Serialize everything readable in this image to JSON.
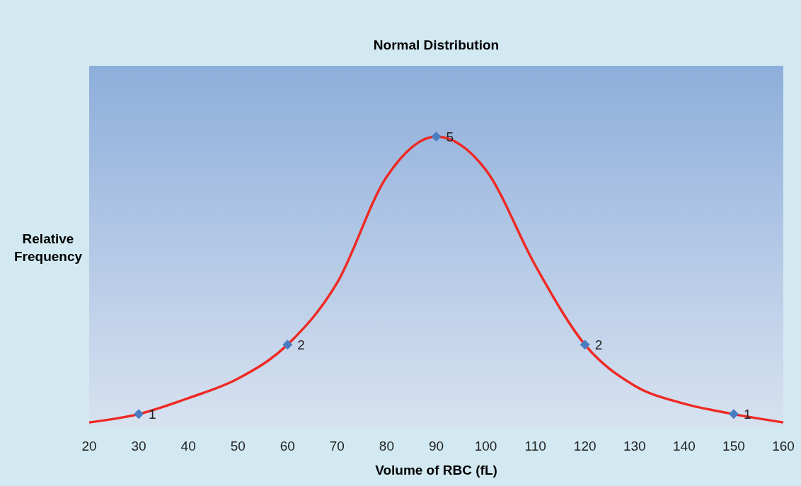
{
  "chart_data": {
    "type": "line",
    "title": "Normal Distribution",
    "xlabel": "Volume of RBC (fL)",
    "ylabel": "Relative Frequency",
    "xlim": [
      20,
      160
    ],
    "xticks": [
      20,
      30,
      40,
      50,
      60,
      70,
      80,
      90,
      100,
      110,
      120,
      130,
      140,
      150,
      160
    ],
    "ylim": [
      0.82,
      6.02
    ],
    "tick_labels": "x",
    "series": [
      {
        "color": "#ee2a24",
        "marker": "none",
        "x": [
          20,
          30,
          40,
          50,
          60,
          70,
          80,
          90,
          100,
          110,
          120,
          130,
          140,
          150,
          160
        ],
        "values": [
          0.88,
          1,
          1.23,
          1.51,
          2,
          2.89,
          4.42,
          5,
          4.52,
          3.14,
          2,
          1.41,
          1.15,
          1,
          0.88
        ]
      },
      {
        "type": "scatter",
        "color": "#4a7cc0",
        "marker": "diamond",
        "x": [
          30,
          60,
          90,
          120,
          150
        ],
        "values": [
          1,
          2,
          5,
          2,
          1
        ],
        "value_labels": [
          "1",
          "2",
          "5",
          "2",
          "1"
        ]
      }
    ]
  }
}
